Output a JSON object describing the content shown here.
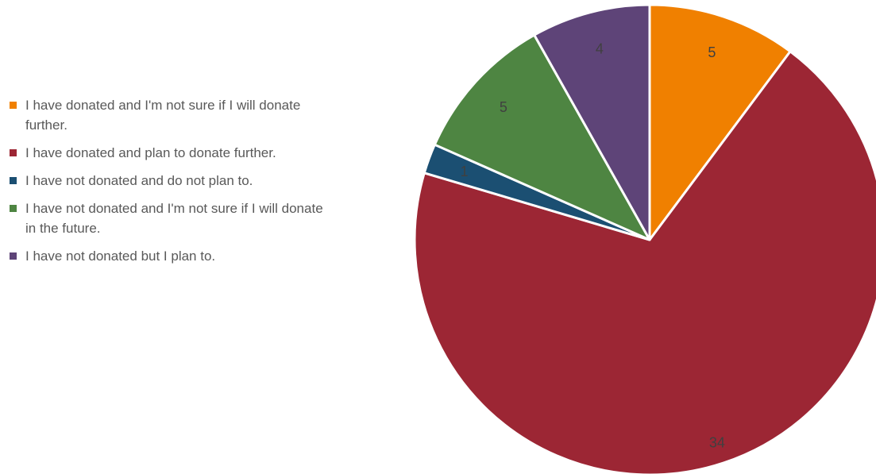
{
  "chart_data": {
    "type": "pie",
    "title": "",
    "slices": [
      {
        "label": "I have donated and I'm not sure if I will donate further.",
        "value": 5,
        "color": "#F08000"
      },
      {
        "label": "I have donated and plan to donate further.",
        "value": 34,
        "color": "#9C2634"
      },
      {
        "label": "I have not donated and do not plan to.",
        "value": 1,
        "color": "#1B4F72"
      },
      {
        "label": "I have not donated and I'm not sure if I will donate in the future.",
        "value": 5,
        "color": "#4E8542"
      },
      {
        "label": "I have not donated but I plan to.",
        "value": 4,
        "color": "#5E4478"
      }
    ],
    "legend_position": "left",
    "start_angle": "12 o'clock",
    "direction": "clockwise"
  }
}
